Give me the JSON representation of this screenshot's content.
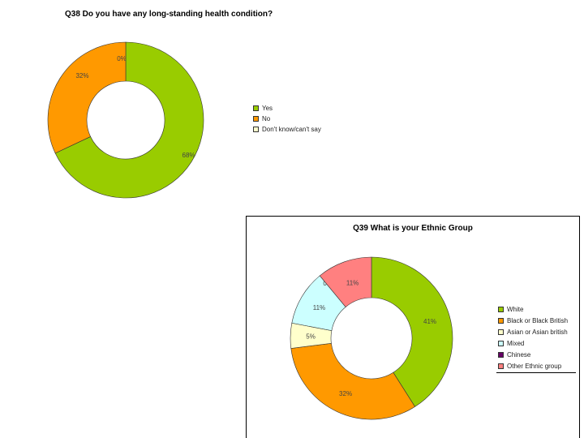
{
  "chart_data": [
    {
      "type": "pie",
      "title": "Q38 Do you have any long-standing health condition?",
      "categories": [
        "Yes",
        "No",
        "Don't know/can't say"
      ],
      "values": [
        68,
        32,
        0
      ],
      "data_labels": [
        "68%",
        "32%",
        "0%"
      ],
      "colors": [
        "#99cc00",
        "#ff9900",
        "#ffffcc"
      ],
      "legend_position": "right"
    },
    {
      "type": "pie",
      "title": "Q39 What is your Ethnic Group",
      "categories": [
        "White",
        "Black or Black British",
        "Asian or Asian british",
        "Mixed",
        "Chinese",
        "Other Ethnic group"
      ],
      "values": [
        41,
        32,
        5,
        11,
        0,
        11
      ],
      "data_labels": [
        "41%",
        "32%",
        "5%",
        "11%",
        "0%",
        "11%"
      ],
      "colors": [
        "#99cc00",
        "#ff9900",
        "#ffffcc",
        "#ccffff",
        "#660066",
        "#ff8080"
      ],
      "legend_position": "right"
    }
  ]
}
